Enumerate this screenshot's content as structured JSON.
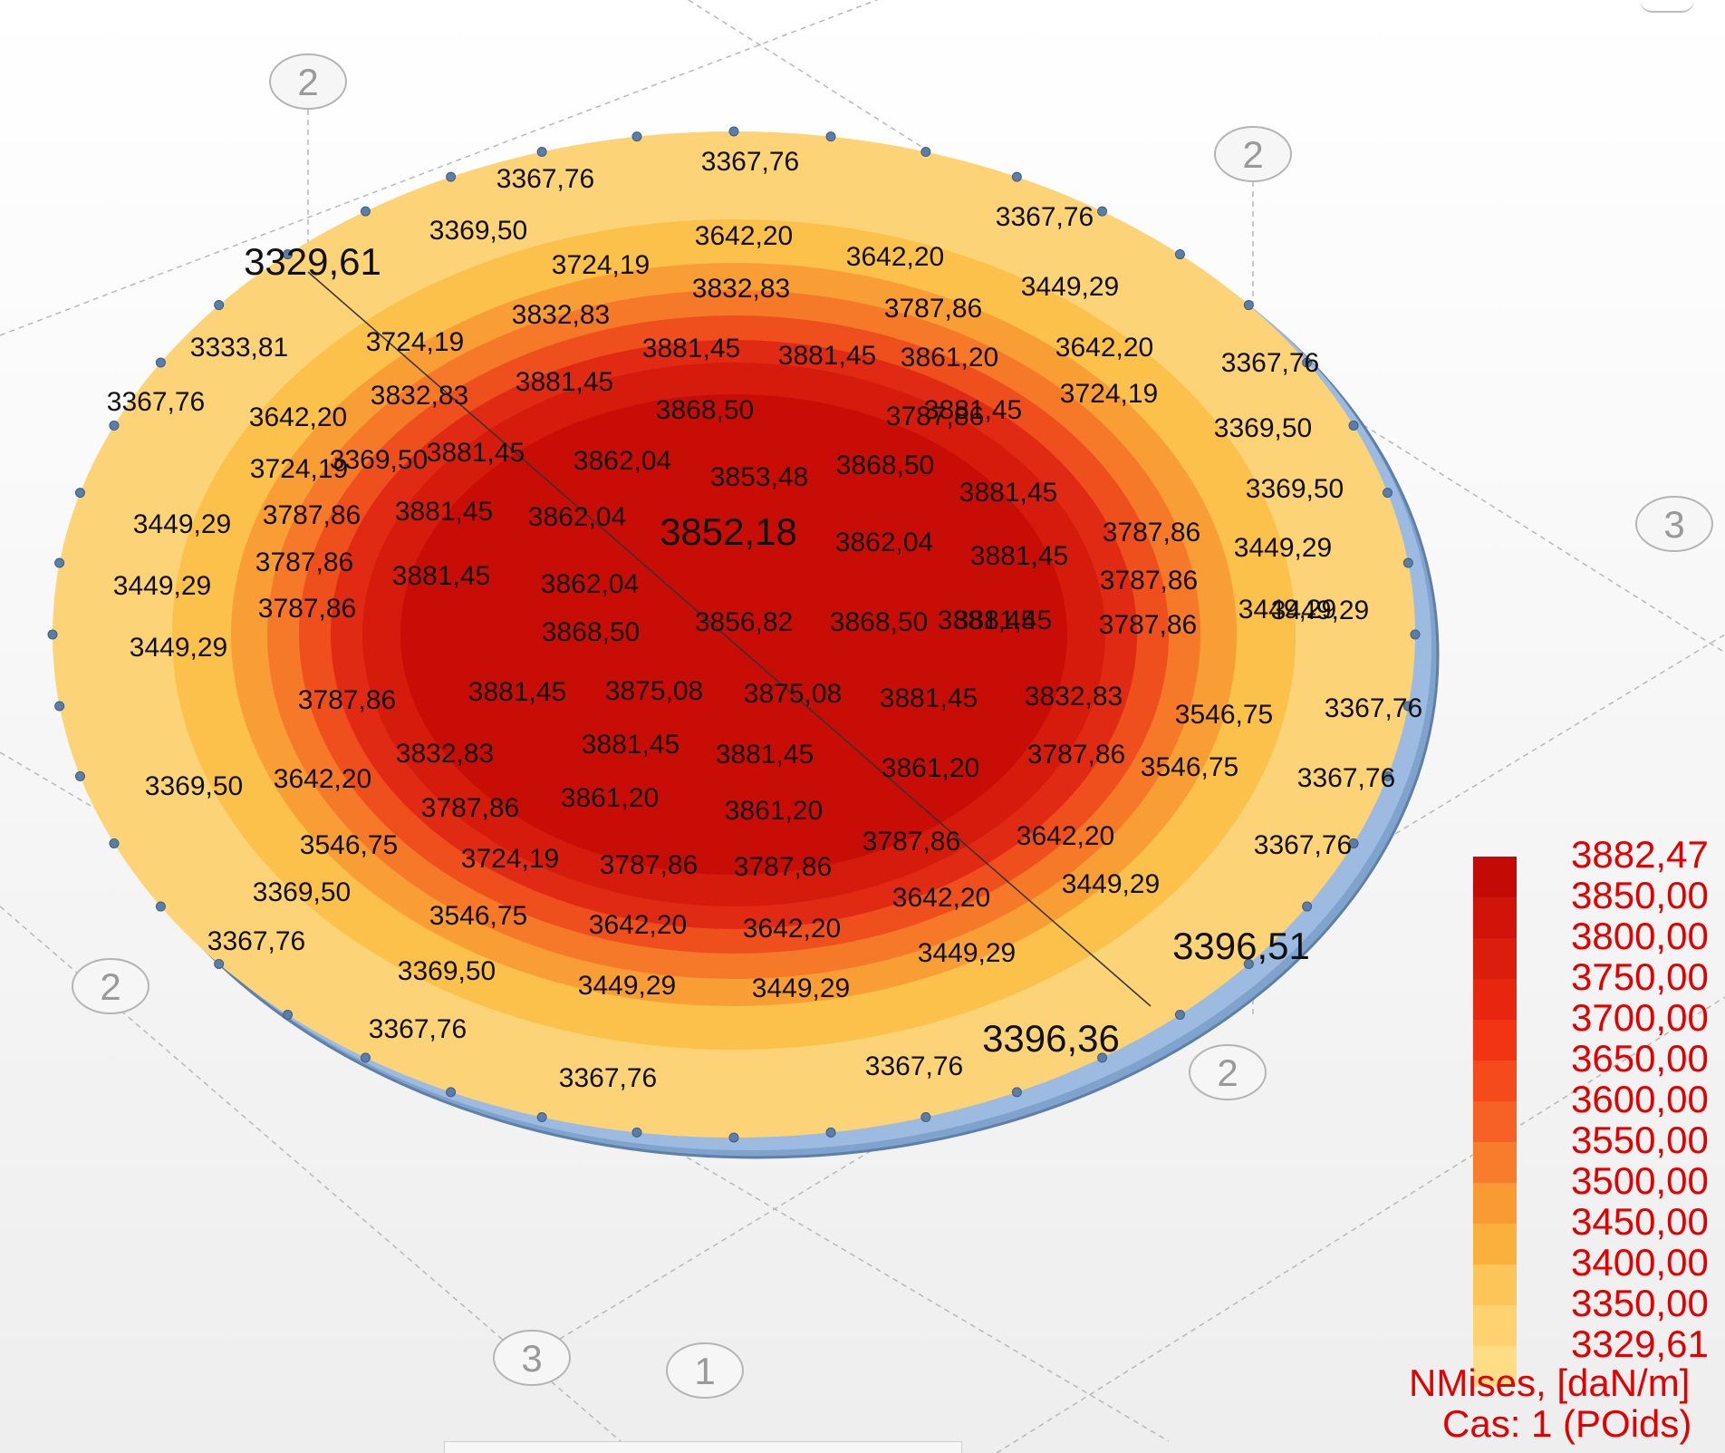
{
  "axes": [
    {
      "name": "2"
    },
    {
      "name": "2"
    },
    {
      "name": "3"
    },
    {
      "name": "2"
    },
    {
      "name": "2"
    },
    {
      "name": "3"
    },
    {
      "name": "1"
    }
  ],
  "plate": {
    "colors": {
      "outer": "#fdd377",
      "ring2": "#fbc14a",
      "ring3": "#f99e35",
      "ring4": "#f6792a",
      "ring5": "#ee4f1c",
      "ring6": "#e02a14",
      "ring7": "#d51b0c",
      "core": "#c80c06",
      "edge": "#7fa3cd"
    },
    "labels": [
      {
        "text": "3367,76"
      },
      {
        "text": "3367,76"
      },
      {
        "text": "3367,76"
      },
      {
        "text": "3369,50"
      },
      {
        "text": "3642,20"
      },
      {
        "text": "3642,20"
      },
      {
        "text": "3329,61"
      },
      {
        "text": "3724,19"
      },
      {
        "text": "3449,29"
      },
      {
        "text": "3832,83"
      },
      {
        "text": "3832,83"
      },
      {
        "text": "3787,86"
      },
      {
        "text": "3333,81"
      },
      {
        "text": "3724,19"
      },
      {
        "text": "3881,45"
      },
      {
        "text": "3881,45"
      },
      {
        "text": "3861,20"
      },
      {
        "text": "3642,20"
      },
      {
        "text": "3367,76"
      },
      {
        "text": "3881,45"
      },
      {
        "text": "3367,76"
      },
      {
        "text": "3642,20"
      },
      {
        "text": "3832,83"
      },
      {
        "text": "3868,50"
      },
      {
        "text": "3881,45"
      },
      {
        "text": "3724,19"
      },
      {
        "text": "3369,50"
      },
      {
        "text": "3787,86"
      },
      {
        "text": "3369,50"
      },
      {
        "text": "3724,19"
      },
      {
        "text": "3881,45"
      },
      {
        "text": "3862,04"
      },
      {
        "text": "3853,48"
      },
      {
        "text": "3868,50"
      },
      {
        "text": "3881,45"
      },
      {
        "text": "3369,50"
      },
      {
        "text": "3449,29"
      },
      {
        "text": "3787,86"
      },
      {
        "text": "3881,45"
      },
      {
        "text": "3862,04"
      },
      {
        "text": "3852,18"
      },
      {
        "text": "3862,04"
      },
      {
        "text": "3787,86"
      },
      {
        "text": "3881,45"
      },
      {
        "text": "3449,29"
      },
      {
        "text": "3787,86"
      },
      {
        "text": "3881,45"
      },
      {
        "text": "3862,04"
      },
      {
        "text": "3449,29"
      },
      {
        "text": "3787,86"
      },
      {
        "text": "3449,29"
      },
      {
        "text": "3787,86"
      },
      {
        "text": "3881,45"
      },
      {
        "text": "3868,50"
      },
      {
        "text": "3856,82"
      },
      {
        "text": "3868,50"
      },
      {
        "text": "3881,45"
      },
      {
        "text": "3787,86"
      },
      {
        "text": "3449,29"
      },
      {
        "text": "3449,29"
      },
      {
        "text": "3787,86"
      },
      {
        "text": "3881,45"
      },
      {
        "text": "3875,08"
      },
      {
        "text": "3875,08"
      },
      {
        "text": "3881,45"
      },
      {
        "text": "3832,83"
      },
      {
        "text": "3546,75"
      },
      {
        "text": "3367,76"
      },
      {
        "text": "3832,83"
      },
      {
        "text": "3881,45"
      },
      {
        "text": "3881,45"
      },
      {
        "text": "3861,20"
      },
      {
        "text": "3787,86"
      },
      {
        "text": "3546,75"
      },
      {
        "text": "3369,50"
      },
      {
        "text": "3642,20"
      },
      {
        "text": "3367,76"
      },
      {
        "text": "3787,86"
      },
      {
        "text": "3861,20"
      },
      {
        "text": "3861,20"
      },
      {
        "text": "3546,75"
      },
      {
        "text": "3787,86"
      },
      {
        "text": "3642,20"
      },
      {
        "text": "3367,76"
      },
      {
        "text": "3724,19"
      },
      {
        "text": "3787,86"
      },
      {
        "text": "3787,86"
      },
      {
        "text": "3449,29"
      },
      {
        "text": "3369,50"
      },
      {
        "text": "3642,20"
      },
      {
        "text": "3546,75"
      },
      {
        "text": "3642,20"
      },
      {
        "text": "3642,20"
      },
      {
        "text": "3396,51"
      },
      {
        "text": "3367,76"
      },
      {
        "text": "3369,50"
      },
      {
        "text": "3449,29"
      },
      {
        "text": "3449,29"
      },
      {
        "text": "3449,29"
      },
      {
        "text": "3367,76"
      },
      {
        "text": "3396,36"
      },
      {
        "text": "3367,76"
      },
      {
        "text": "3367,76"
      }
    ]
  },
  "legend": {
    "ticks": [
      "3882,47",
      "3850,00",
      "3800,00",
      "3750,00",
      "3700,00",
      "3650,00",
      "3600,00",
      "3550,00",
      "3500,00",
      "3450,00",
      "3400,00",
      "3350,00",
      "3329,61"
    ],
    "band_colors": [
      "#c40a05",
      "#d01409",
      "#db1e0c",
      "#e8260f",
      "#f23412",
      "#f44a1c",
      "#f66126",
      "#f77c2c",
      "#f99a33",
      "#fbb03d",
      "#fdc558",
      "#fed36f",
      "#fedd86"
    ],
    "title": "NMises, [daN/m]",
    "case": "Cas: 1 (POids)"
  }
}
